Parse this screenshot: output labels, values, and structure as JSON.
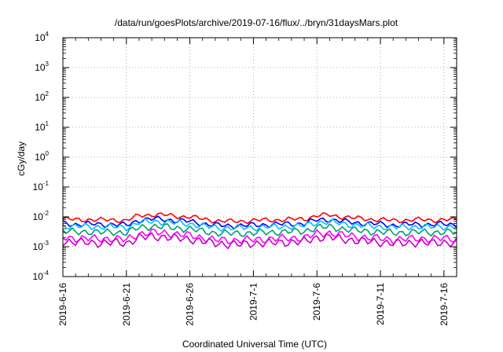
{
  "chart_data": {
    "type": "line",
    "title": "/data/run/goesPlots/archive/2019-07-16/flux/../bryn/31daysMars.plot",
    "xlabel": "Coordinated Universal Time (UTC)",
    "ylabel": "cGy/day",
    "y_scale": "log",
    "ylim": [
      0.0001,
      10000
    ],
    "y_ticks": [
      {
        "base": "10",
        "exp": "-4"
      },
      {
        "base": "10",
        "exp": "-3"
      },
      {
        "base": "10",
        "exp": "-2"
      },
      {
        "base": "10",
        "exp": "-1"
      },
      {
        "base": "10",
        "exp": "0"
      },
      {
        "base": "10",
        "exp": "1"
      },
      {
        "base": "10",
        "exp": "2"
      },
      {
        "base": "10",
        "exp": "3"
      },
      {
        "base": "10",
        "exp": "4"
      }
    ],
    "xlim": [
      "2019-06-16",
      "2019-07-17"
    ],
    "x_tick_labels": [
      "2019-6-16",
      "2019-6-21",
      "2019-6-26",
      "2019-7-1",
      "2019-7-6",
      "2019-7-11",
      "2019-7-16"
    ],
    "grid": true,
    "legend": "none",
    "series": [
      {
        "color": "#ff0000",
        "values": [
          0.0085,
          0.008,
          0.0082,
          0.0078,
          0.008,
          0.0075,
          0.011,
          0.012,
          0.0115,
          0.0105,
          0.01,
          0.0085,
          0.0075,
          0.007,
          0.0072,
          0.0075,
          0.0078,
          0.008,
          0.0082,
          0.0085,
          0.011,
          0.0115,
          0.01,
          0.009,
          0.0085,
          0.008,
          0.0075,
          0.0078,
          0.008,
          0.0078,
          0.008,
          0.0078
        ]
      },
      {
        "color": "#0000ff",
        "values": [
          0.006,
          0.0056,
          0.0058,
          0.0055,
          0.0057,
          0.0052,
          0.0078,
          0.0085,
          0.0082,
          0.0075,
          0.007,
          0.006,
          0.0053,
          0.005,
          0.0051,
          0.0053,
          0.0055,
          0.0057,
          0.0058,
          0.006,
          0.0078,
          0.0082,
          0.0071,
          0.0064,
          0.006,
          0.0057,
          0.0053,
          0.0055,
          0.0057,
          0.0055,
          0.0057,
          0.0055
        ]
      },
      {
        "color": "#00c0ff",
        "values": [
          0.005,
          0.0047,
          0.0048,
          0.0046,
          0.0047,
          0.0044,
          0.0065,
          0.007,
          0.0068,
          0.0062,
          0.0058,
          0.005,
          0.0044,
          0.0042,
          0.0043,
          0.0044,
          0.0046,
          0.0047,
          0.0048,
          0.005,
          0.0065,
          0.0068,
          0.0059,
          0.0053,
          0.005,
          0.0047,
          0.0044,
          0.0046,
          0.0047,
          0.0046,
          0.0047,
          0.0046
        ]
      },
      {
        "color": "#00a070",
        "values": [
          0.0033,
          0.0031,
          0.0032,
          0.003,
          0.0031,
          0.0029,
          0.0044,
          0.0048,
          0.0046,
          0.0042,
          0.0039,
          0.0033,
          0.0029,
          0.0028,
          0.0028,
          0.0029,
          0.003,
          0.0031,
          0.0032,
          0.0033,
          0.0044,
          0.0046,
          0.004,
          0.0035,
          0.0033,
          0.0031,
          0.0029,
          0.003,
          0.0031,
          0.003,
          0.0031,
          0.003
        ]
      },
      {
        "color": "#ff00ff",
        "values": [
          0.002,
          0.0019,
          0.0019,
          0.0018,
          0.0019,
          0.0017,
          0.0027,
          0.003,
          0.0029,
          0.0026,
          0.0024,
          0.002,
          0.0017,
          0.0016,
          0.0017,
          0.0017,
          0.0018,
          0.0019,
          0.0019,
          0.002,
          0.0027,
          0.0029,
          0.0025,
          0.0022,
          0.002,
          0.0019,
          0.0017,
          0.0018,
          0.0019,
          0.0018,
          0.0019,
          0.0018
        ]
      },
      {
        "color": "#c800c8",
        "values": [
          0.0015,
          0.0014,
          0.0014,
          0.0013,
          0.0014,
          0.0013,
          0.002,
          0.0022,
          0.0021,
          0.0019,
          0.0018,
          0.0015,
          0.0013,
          0.0012,
          0.0012,
          0.0013,
          0.0013,
          0.0014,
          0.0014,
          0.0015,
          0.002,
          0.0021,
          0.0018,
          0.0016,
          0.0015,
          0.0014,
          0.0013,
          0.0013,
          0.0014,
          0.0013,
          0.0014,
          0.0013
        ]
      }
    ]
  }
}
